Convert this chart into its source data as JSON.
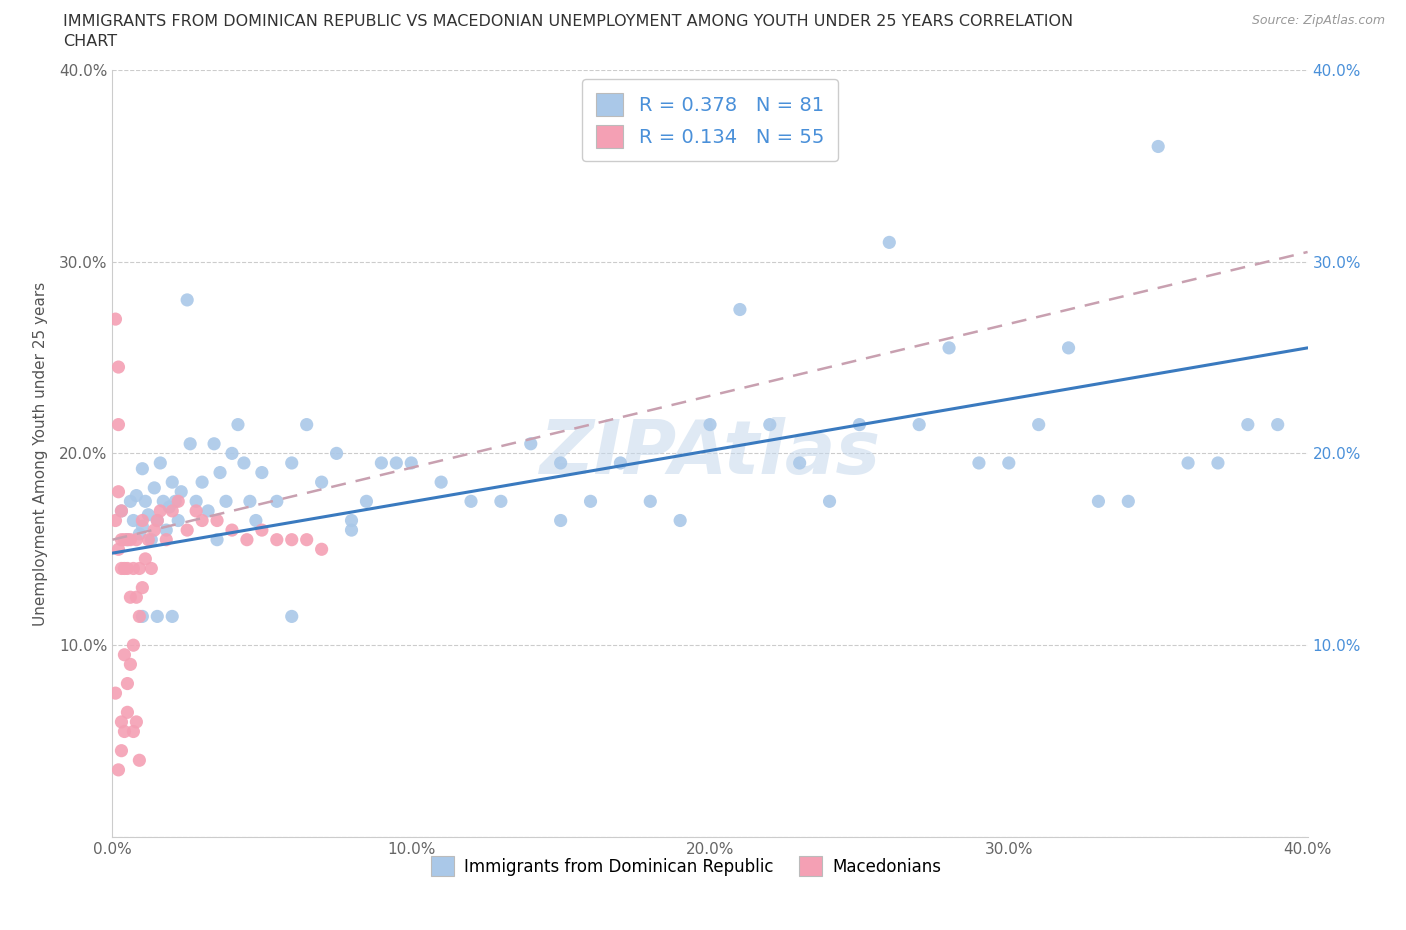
{
  "title_line1": "IMMIGRANTS FROM DOMINICAN REPUBLIC VS MACEDONIAN UNEMPLOYMENT AMONG YOUTH UNDER 25 YEARS CORRELATION",
  "title_line2": "CHART",
  "source_text": "Source: ZipAtlas.com",
  "ylabel": "Unemployment Among Youth under 25 years",
  "xlim": [
    0.0,
    0.4
  ],
  "ylim": [
    0.0,
    0.4
  ],
  "xticks": [
    0.0,
    0.1,
    0.2,
    0.3,
    0.4
  ],
  "yticks": [
    0.0,
    0.1,
    0.2,
    0.3,
    0.4
  ],
  "xticklabels": [
    "0.0%",
    "10.0%",
    "20.0%",
    "30.0%",
    "40.0%"
  ],
  "yticklabels_left": [
    "",
    "10.0%",
    "20.0%",
    "30.0%",
    "40.0%"
  ],
  "yticklabels_right": [
    "",
    "10.0%",
    "20.0%",
    "30.0%",
    "40.0%"
  ],
  "grid_color": "#cccccc",
  "blue_color": "#aac8e8",
  "pink_color": "#f4a0b4",
  "blue_line_color": "#3a7abf",
  "pink_line_color": "#c8a0b0",
  "right_tick_color": "#4a90d9",
  "R_blue": 0.378,
  "N_blue": 81,
  "R_pink": 0.134,
  "N_pink": 55,
  "blue_line_x0": 0.0,
  "blue_line_y0": 0.148,
  "blue_line_x1": 0.4,
  "blue_line_y1": 0.255,
  "pink_line_x0": 0.0,
  "pink_line_y0": 0.155,
  "pink_line_x1": 0.4,
  "pink_line_y1": 0.305,
  "blue_x": [
    0.003,
    0.005,
    0.006,
    0.007,
    0.008,
    0.009,
    0.01,
    0.01,
    0.011,
    0.012,
    0.013,
    0.014,
    0.015,
    0.016,
    0.017,
    0.018,
    0.019,
    0.02,
    0.021,
    0.022,
    0.023,
    0.025,
    0.026,
    0.028,
    0.03,
    0.032,
    0.034,
    0.036,
    0.038,
    0.04,
    0.042,
    0.044,
    0.046,
    0.048,
    0.05,
    0.055,
    0.06,
    0.065,
    0.07,
    0.075,
    0.08,
    0.085,
    0.09,
    0.095,
    0.1,
    0.11,
    0.12,
    0.13,
    0.14,
    0.15,
    0.16,
    0.17,
    0.18,
    0.19,
    0.2,
    0.21,
    0.22,
    0.23,
    0.24,
    0.26,
    0.27,
    0.28,
    0.29,
    0.3,
    0.31,
    0.32,
    0.33,
    0.34,
    0.35,
    0.36,
    0.37,
    0.38,
    0.39,
    0.25,
    0.15,
    0.08,
    0.06,
    0.035,
    0.02,
    0.015,
    0.01
  ],
  "blue_y": [
    0.17,
    0.155,
    0.175,
    0.165,
    0.178,
    0.158,
    0.162,
    0.192,
    0.175,
    0.168,
    0.155,
    0.182,
    0.165,
    0.195,
    0.175,
    0.16,
    0.172,
    0.185,
    0.175,
    0.165,
    0.18,
    0.28,
    0.205,
    0.175,
    0.185,
    0.17,
    0.205,
    0.19,
    0.175,
    0.2,
    0.215,
    0.195,
    0.175,
    0.165,
    0.19,
    0.175,
    0.195,
    0.215,
    0.185,
    0.2,
    0.16,
    0.175,
    0.195,
    0.195,
    0.195,
    0.185,
    0.175,
    0.175,
    0.205,
    0.165,
    0.175,
    0.195,
    0.175,
    0.165,
    0.215,
    0.275,
    0.215,
    0.195,
    0.175,
    0.31,
    0.215,
    0.255,
    0.195,
    0.195,
    0.215,
    0.255,
    0.175,
    0.175,
    0.36,
    0.195,
    0.195,
    0.215,
    0.215,
    0.215,
    0.195,
    0.165,
    0.115,
    0.155,
    0.115,
    0.115,
    0.115
  ],
  "pink_x": [
    0.001,
    0.001,
    0.001,
    0.002,
    0.002,
    0.002,
    0.002,
    0.003,
    0.003,
    0.003,
    0.003,
    0.004,
    0.004,
    0.004,
    0.005,
    0.005,
    0.005,
    0.006,
    0.006,
    0.007,
    0.007,
    0.008,
    0.008,
    0.009,
    0.009,
    0.01,
    0.01,
    0.011,
    0.012,
    0.013,
    0.014,
    0.015,
    0.016,
    0.018,
    0.02,
    0.022,
    0.025,
    0.028,
    0.03,
    0.035,
    0.04,
    0.045,
    0.05,
    0.055,
    0.06,
    0.065,
    0.07,
    0.002,
    0.003,
    0.004,
    0.005,
    0.006,
    0.007,
    0.008,
    0.009
  ],
  "pink_y": [
    0.27,
    0.165,
    0.075,
    0.245,
    0.215,
    0.18,
    0.15,
    0.17,
    0.155,
    0.14,
    0.06,
    0.155,
    0.14,
    0.095,
    0.155,
    0.14,
    0.065,
    0.155,
    0.125,
    0.14,
    0.055,
    0.155,
    0.125,
    0.14,
    0.115,
    0.165,
    0.13,
    0.145,
    0.155,
    0.14,
    0.16,
    0.165,
    0.17,
    0.155,
    0.17,
    0.175,
    0.16,
    0.17,
    0.165,
    0.165,
    0.16,
    0.155,
    0.16,
    0.155,
    0.155,
    0.155,
    0.15,
    0.035,
    0.045,
    0.055,
    0.08,
    0.09,
    0.1,
    0.06,
    0.04
  ]
}
